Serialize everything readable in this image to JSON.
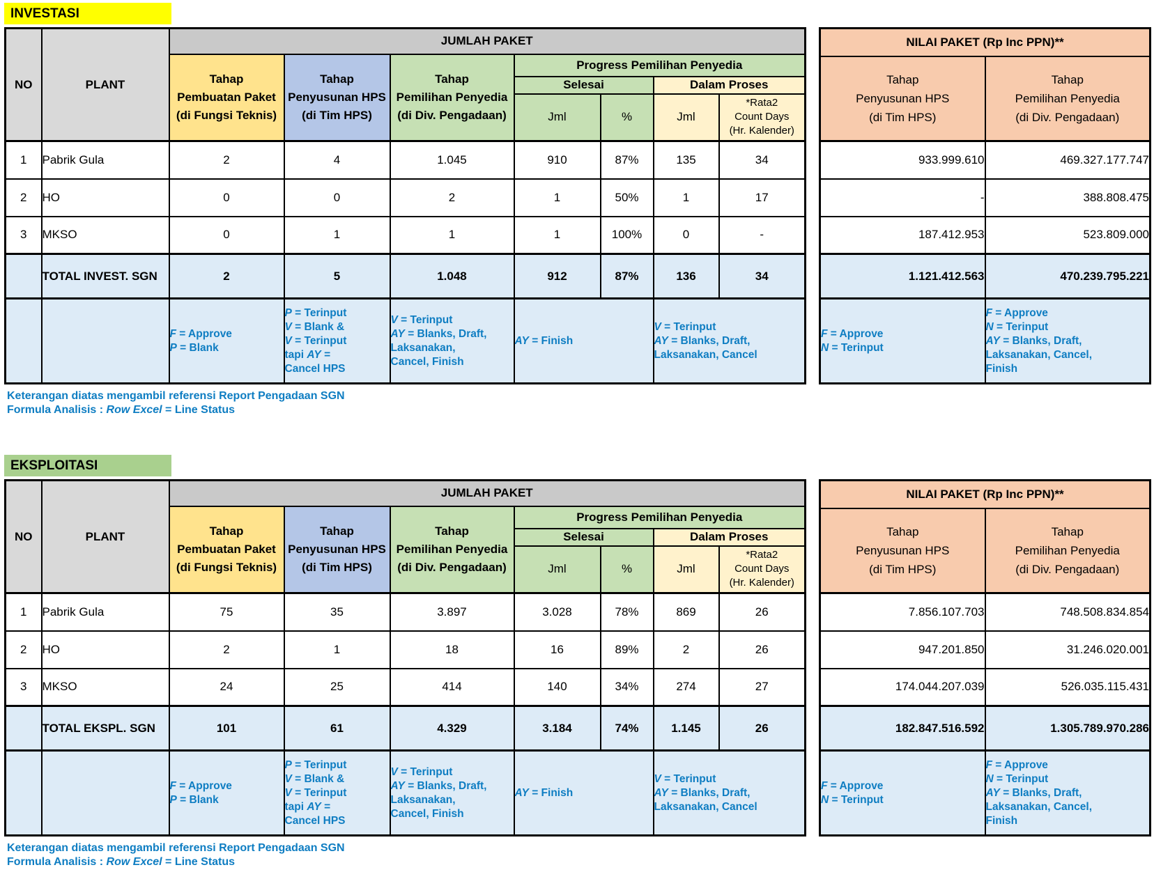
{
  "colors": {
    "header_gray": "#D9D9D9",
    "band_gray": "#C9C9C9",
    "gold": "#FFE38D",
    "blue": "#B4C6E7",
    "green": "#C6E0B4",
    "light_yellow": "#FFF2CC",
    "salmon": "#F8CBAD",
    "light_blue": "#DDEBF7",
    "legend_text": "#0E7DC2",
    "title_investasi_bg": "#FFFF00",
    "title_eksploitasi_bg": "#A9D08E"
  },
  "shared": {
    "headers": {
      "no": "NO",
      "plant": "PLANT",
      "jumlah_paket": "JUMLAH PAKET",
      "tahap_pembuatan": [
        "Tahap",
        "Pembuatan Paket",
        "(di Fungsi Teknis)"
      ],
      "tahap_penyusunan": [
        "Tahap",
        "Penyusunan HPS",
        "(di Tim HPS)"
      ],
      "tahap_pemilihan": [
        "Tahap",
        "Pemilihan Penyedia",
        "(di Div. Pengadaan)"
      ],
      "progress": "Progress Pemilihan Penyedia",
      "selesai": "Selesai",
      "dalam_proses": "Dalam Proses",
      "jml": "Jml",
      "pct": "%",
      "rata2": [
        "*Rata2",
        "Count Days",
        "(Hr. Kalender)"
      ],
      "nilai_title": "NILAI PAKET (Rp Inc PPN)**",
      "nilai_hps": [
        "Tahap",
        "Penyusunan HPS",
        "(di Tim HPS)"
      ],
      "nilai_pemilihan": [
        "Tahap",
        "Pemilihan Penyedia",
        "(di Div. Pengadaan)"
      ]
    },
    "legend": {
      "pembuatan": [
        [
          {
            "t": "F",
            "i": true
          },
          {
            "t": " = Approve",
            "i": false
          }
        ],
        [
          {
            "t": "P",
            "i": true
          },
          {
            "t": " = Blank",
            "i": false
          }
        ]
      ],
      "penyusunan": [
        [
          {
            "t": "P",
            "i": true
          },
          {
            "t": " = Terinput",
            "i": false
          }
        ],
        [
          {
            "t": "V",
            "i": true
          },
          {
            "t": " = Blank &",
            "i": false
          }
        ],
        [
          {
            "t": "V",
            "i": true
          },
          {
            "t": " = Terinput",
            "i": false
          }
        ],
        [
          {
            "t": "tapi ",
            "i": false
          },
          {
            "t": "AY",
            "i": true
          },
          {
            "t": " =",
            "i": false
          }
        ],
        [
          {
            "t": "Cancel HPS",
            "i": false
          }
        ]
      ],
      "pemilihan": [
        [
          {
            "t": "V",
            "i": true
          },
          {
            "t": " = Terinput",
            "i": false
          }
        ],
        [
          {
            "t": "AY",
            "i": true
          },
          {
            "t": " = Blanks, Draft,",
            "i": false
          }
        ],
        [
          {
            "t": "Laksanakan,",
            "i": false
          }
        ],
        [
          {
            "t": "Cancel, Finish",
            "i": false
          }
        ]
      ],
      "selesai": [
        [
          {
            "t": "AY",
            "i": true
          },
          {
            "t": " = Finish",
            "i": false
          }
        ]
      ],
      "dalam_proses": [
        [
          {
            "t": "V",
            "i": true
          },
          {
            "t": " = Terinput",
            "i": false
          }
        ],
        [
          {
            "t": "AY",
            "i": true
          },
          {
            "t": " = Blanks, Draft,",
            "i": false
          }
        ],
        [
          {
            "t": "Laksanakan, Cancel",
            "i": false
          }
        ]
      ],
      "nilai_hps": [
        [
          {
            "t": "F",
            "i": true
          },
          {
            "t": " = Approve",
            "i": false
          }
        ],
        [
          {
            "t": "N",
            "i": true
          },
          {
            "t": " = Terinput",
            "i": false
          }
        ]
      ],
      "nilai_pemilihan": [
        [
          {
            "t": "F",
            "i": true
          },
          {
            "t": " = Approve",
            "i": false
          }
        ],
        [
          {
            "t": "N",
            "i": true
          },
          {
            "t": " = Terinput",
            "i": false
          }
        ],
        [
          {
            "t": "AY",
            "i": true
          },
          {
            "t": " = Blanks, Draft,",
            "i": false
          }
        ],
        [
          {
            "t": "Laksanakan, Cancel,",
            "i": false
          }
        ],
        [
          {
            "t": "Finish",
            "i": false
          }
        ]
      ]
    },
    "footer": {
      "line1": "Keterangan diatas mengambil referensi Report Pengadaan SGN",
      "line2": [
        {
          "t": "Formula Analisis : ",
          "i": false
        },
        {
          "t": "Row Excel",
          "i": true
        },
        {
          "t": " = Line Status",
          "i": false
        }
      ]
    }
  },
  "sections": [
    {
      "id": "investasi",
      "title": "INVESTASI",
      "rows": [
        {
          "no": "1",
          "plant": "Pabrik Gula",
          "jumlah": [
            "2",
            "4",
            "1.045",
            "910",
            "87%",
            "135",
            "34"
          ],
          "nilai": [
            "933.999.610",
            "469.327.177.747"
          ]
        },
        {
          "no": "2",
          "plant": "HO",
          "jumlah": [
            "0",
            "0",
            "2",
            "1",
            "50%",
            "1",
            "17"
          ],
          "nilai": [
            "-",
            "388.808.475"
          ]
        },
        {
          "no": "3",
          "plant": "MKSO",
          "jumlah": [
            "0",
            "1",
            "1",
            "1",
            "100%",
            "0",
            "-"
          ],
          "nilai": [
            "187.412.953",
            "523.809.000"
          ]
        }
      ],
      "total": {
        "label": "TOTAL INVEST. SGN",
        "jumlah": [
          "2",
          "5",
          "1.048",
          "912",
          "87%",
          "136",
          "34"
        ],
        "nilai": [
          "1.121.412.563",
          "470.239.795.221"
        ]
      }
    },
    {
      "id": "eksploitasi",
      "title": "EKSPLOITASI",
      "rows": [
        {
          "no": "1",
          "plant": "Pabrik Gula",
          "jumlah": [
            "75",
            "35",
            "3.897",
            "3.028",
            "78%",
            "869",
            "26"
          ],
          "nilai": [
            "7.856.107.703",
            "748.508.834.854"
          ]
        },
        {
          "no": "2",
          "plant": "HO",
          "jumlah": [
            "2",
            "1",
            "18",
            "16",
            "89%",
            "2",
            "26"
          ],
          "nilai": [
            "947.201.850",
            "31.246.020.001"
          ]
        },
        {
          "no": "3",
          "plant": "MKSO",
          "jumlah": [
            "24",
            "25",
            "414",
            "140",
            "34%",
            "274",
            "27"
          ],
          "nilai": [
            "174.044.207.039",
            "526.035.115.431"
          ]
        }
      ],
      "total": {
        "label": "TOTAL EKSPL. SGN",
        "jumlah": [
          "101",
          "61",
          "4.329",
          "3.184",
          "74%",
          "1.145",
          "26"
        ],
        "nilai": [
          "182.847.516.592",
          "1.305.789.970.286"
        ]
      }
    }
  ]
}
